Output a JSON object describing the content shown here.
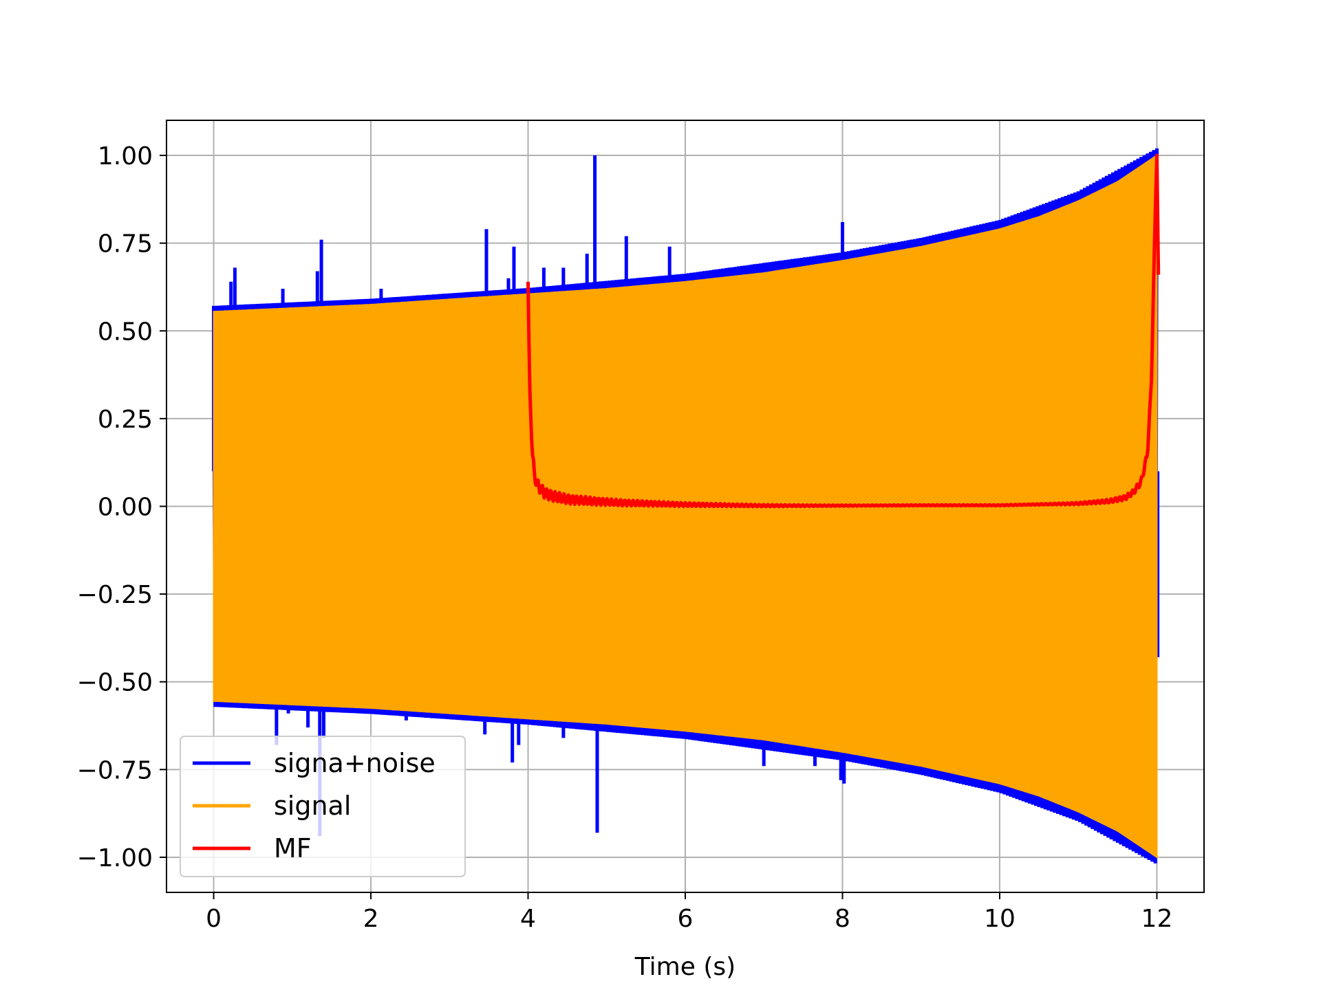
{
  "chart_data": {
    "type": "line",
    "title": "",
    "xlabel": "Time (s)",
    "ylabel": "",
    "xlim": [
      -0.6,
      12.6
    ],
    "ylim": [
      -1.1,
      1.1
    ],
    "grid": true,
    "legend_position": "lower-left",
    "x_ticks": [
      0,
      2,
      4,
      6,
      8,
      10,
      12
    ],
    "x_tick_labels": [
      "0",
      "2",
      "4",
      "6",
      "8",
      "10",
      "12"
    ],
    "y_ticks": [
      1.0,
      0.75,
      0.5,
      0.25,
      0.0,
      -0.25,
      -0.5,
      -0.75,
      -1.0
    ],
    "y_tick_labels": [
      "1.00",
      "0.75",
      "0.50",
      "0.25",
      "0.00",
      "−0.25",
      "−0.50",
      "−0.75",
      "−1.00"
    ],
    "series": [
      {
        "name": "signa+noise",
        "color": "#0000ff",
        "base_envelope": {
          "x": [
            0,
            2,
            4,
            6,
            8,
            9,
            10,
            11,
            12
          ],
          "y": [
            0.56,
            0.58,
            0.61,
            0.65,
            0.71,
            0.75,
            0.8,
            0.88,
            1.0
          ]
        },
        "spikes": [
          {
            "x": 0.22,
            "y": 0.64
          },
          {
            "x": 0.27,
            "y": 0.68
          },
          {
            "x": 0.88,
            "y": 0.62
          },
          {
            "x": 1.32,
            "y": 0.67
          },
          {
            "x": 1.37,
            "y": 0.76
          },
          {
            "x": 2.13,
            "y": 0.62
          },
          {
            "x": 2.6,
            "y": 0.6
          },
          {
            "x": 3.47,
            "y": 0.79
          },
          {
            "x": 3.75,
            "y": 0.65
          },
          {
            "x": 3.82,
            "y": 0.74
          },
          {
            "x": 4.2,
            "y": 0.68
          },
          {
            "x": 4.45,
            "y": 0.68
          },
          {
            "x": 4.75,
            "y": 0.72
          },
          {
            "x": 4.85,
            "y": 1.0
          },
          {
            "x": 5.25,
            "y": 0.77
          },
          {
            "x": 5.8,
            "y": 0.74
          },
          {
            "x": 8.0,
            "y": 0.81
          },
          {
            "x": 0.8,
            "y": -0.68
          },
          {
            "x": 0.95,
            "y": -0.59
          },
          {
            "x": 1.2,
            "y": -0.63
          },
          {
            "x": 1.35,
            "y": -0.94
          },
          {
            "x": 1.4,
            "y": -0.66
          },
          {
            "x": 2.15,
            "y": -0.59
          },
          {
            "x": 2.45,
            "y": -0.61
          },
          {
            "x": 3.45,
            "y": -0.65
          },
          {
            "x": 3.8,
            "y": -0.73
          },
          {
            "x": 3.88,
            "y": -0.68
          },
          {
            "x": 4.45,
            "y": -0.66
          },
          {
            "x": 4.88,
            "y": -0.93
          },
          {
            "x": 7.0,
            "y": -0.74
          },
          {
            "x": 7.65,
            "y": -0.74
          },
          {
            "x": 7.98,
            "y": -0.78
          },
          {
            "x": 8.02,
            "y": -0.79
          }
        ]
      },
      {
        "name": "signal",
        "color": "#ffa500",
        "envelope": {
          "x": [
            0,
            1,
            2,
            3,
            4,
            5,
            6,
            7,
            8,
            9,
            10,
            10.5,
            11,
            11.5,
            12
          ],
          "y": [
            0.555,
            0.565,
            0.575,
            0.59,
            0.605,
            0.62,
            0.64,
            0.665,
            0.7,
            0.74,
            0.79,
            0.825,
            0.87,
            0.925,
            1.0
          ]
        }
      },
      {
        "name": "MF",
        "color": "#ff0000",
        "x": [
          4.0,
          4.02,
          4.05,
          4.08,
          4.12,
          4.2,
          4.3,
          4.5,
          4.8,
          5.2,
          6,
          7,
          8,
          9,
          10,
          11,
          11.4,
          11.6,
          11.7,
          11.8,
          11.88,
          11.93,
          11.97,
          12.0
        ],
        "y": [
          0.64,
          0.35,
          0.16,
          0.09,
          0.06,
          0.04,
          0.03,
          0.02,
          0.015,
          0.01,
          0.005,
          0.002,
          0.002,
          0.003,
          0.003,
          0.008,
          0.015,
          0.025,
          0.04,
          0.07,
          0.15,
          0.35,
          0.75,
          1.0
        ]
      }
    ]
  }
}
